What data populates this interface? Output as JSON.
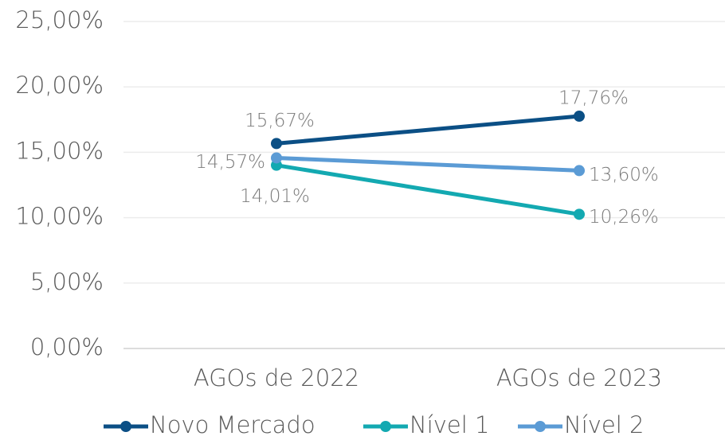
{
  "chart_data": {
    "type": "line",
    "categories": [
      "AGOs de 2022",
      "AGOs de 2023"
    ],
    "series": [
      {
        "name": "Novo Mercado",
        "color": "#0b4f85",
        "values": [
          15.67,
          17.76
        ],
        "value_labels": [
          "15,67%",
          "17,76%"
        ]
      },
      {
        "name": "Nível 1",
        "color": "#13a9b1",
        "values": [
          14.01,
          10.26
        ],
        "value_labels": [
          "14,01%",
          "10,26%"
        ]
      },
      {
        "name": "Nível 2",
        "color": "#5b9bd5",
        "values": [
          14.57,
          13.6
        ],
        "value_labels": [
          "14,57%",
          "13,60%"
        ]
      }
    ],
    "ylim": [
      0,
      25
    ],
    "yticks": [
      {
        "value": 0,
        "label": "0,00%"
      },
      {
        "value": 5,
        "label": "5,00%"
      },
      {
        "value": 10,
        "label": "10,00%"
      },
      {
        "value": 15,
        "label": "15,00%"
      },
      {
        "value": 20,
        "label": "20,00%"
      },
      {
        "value": 25,
        "label": "25,00%"
      }
    ],
    "grid": true,
    "legend": "bottom"
  }
}
